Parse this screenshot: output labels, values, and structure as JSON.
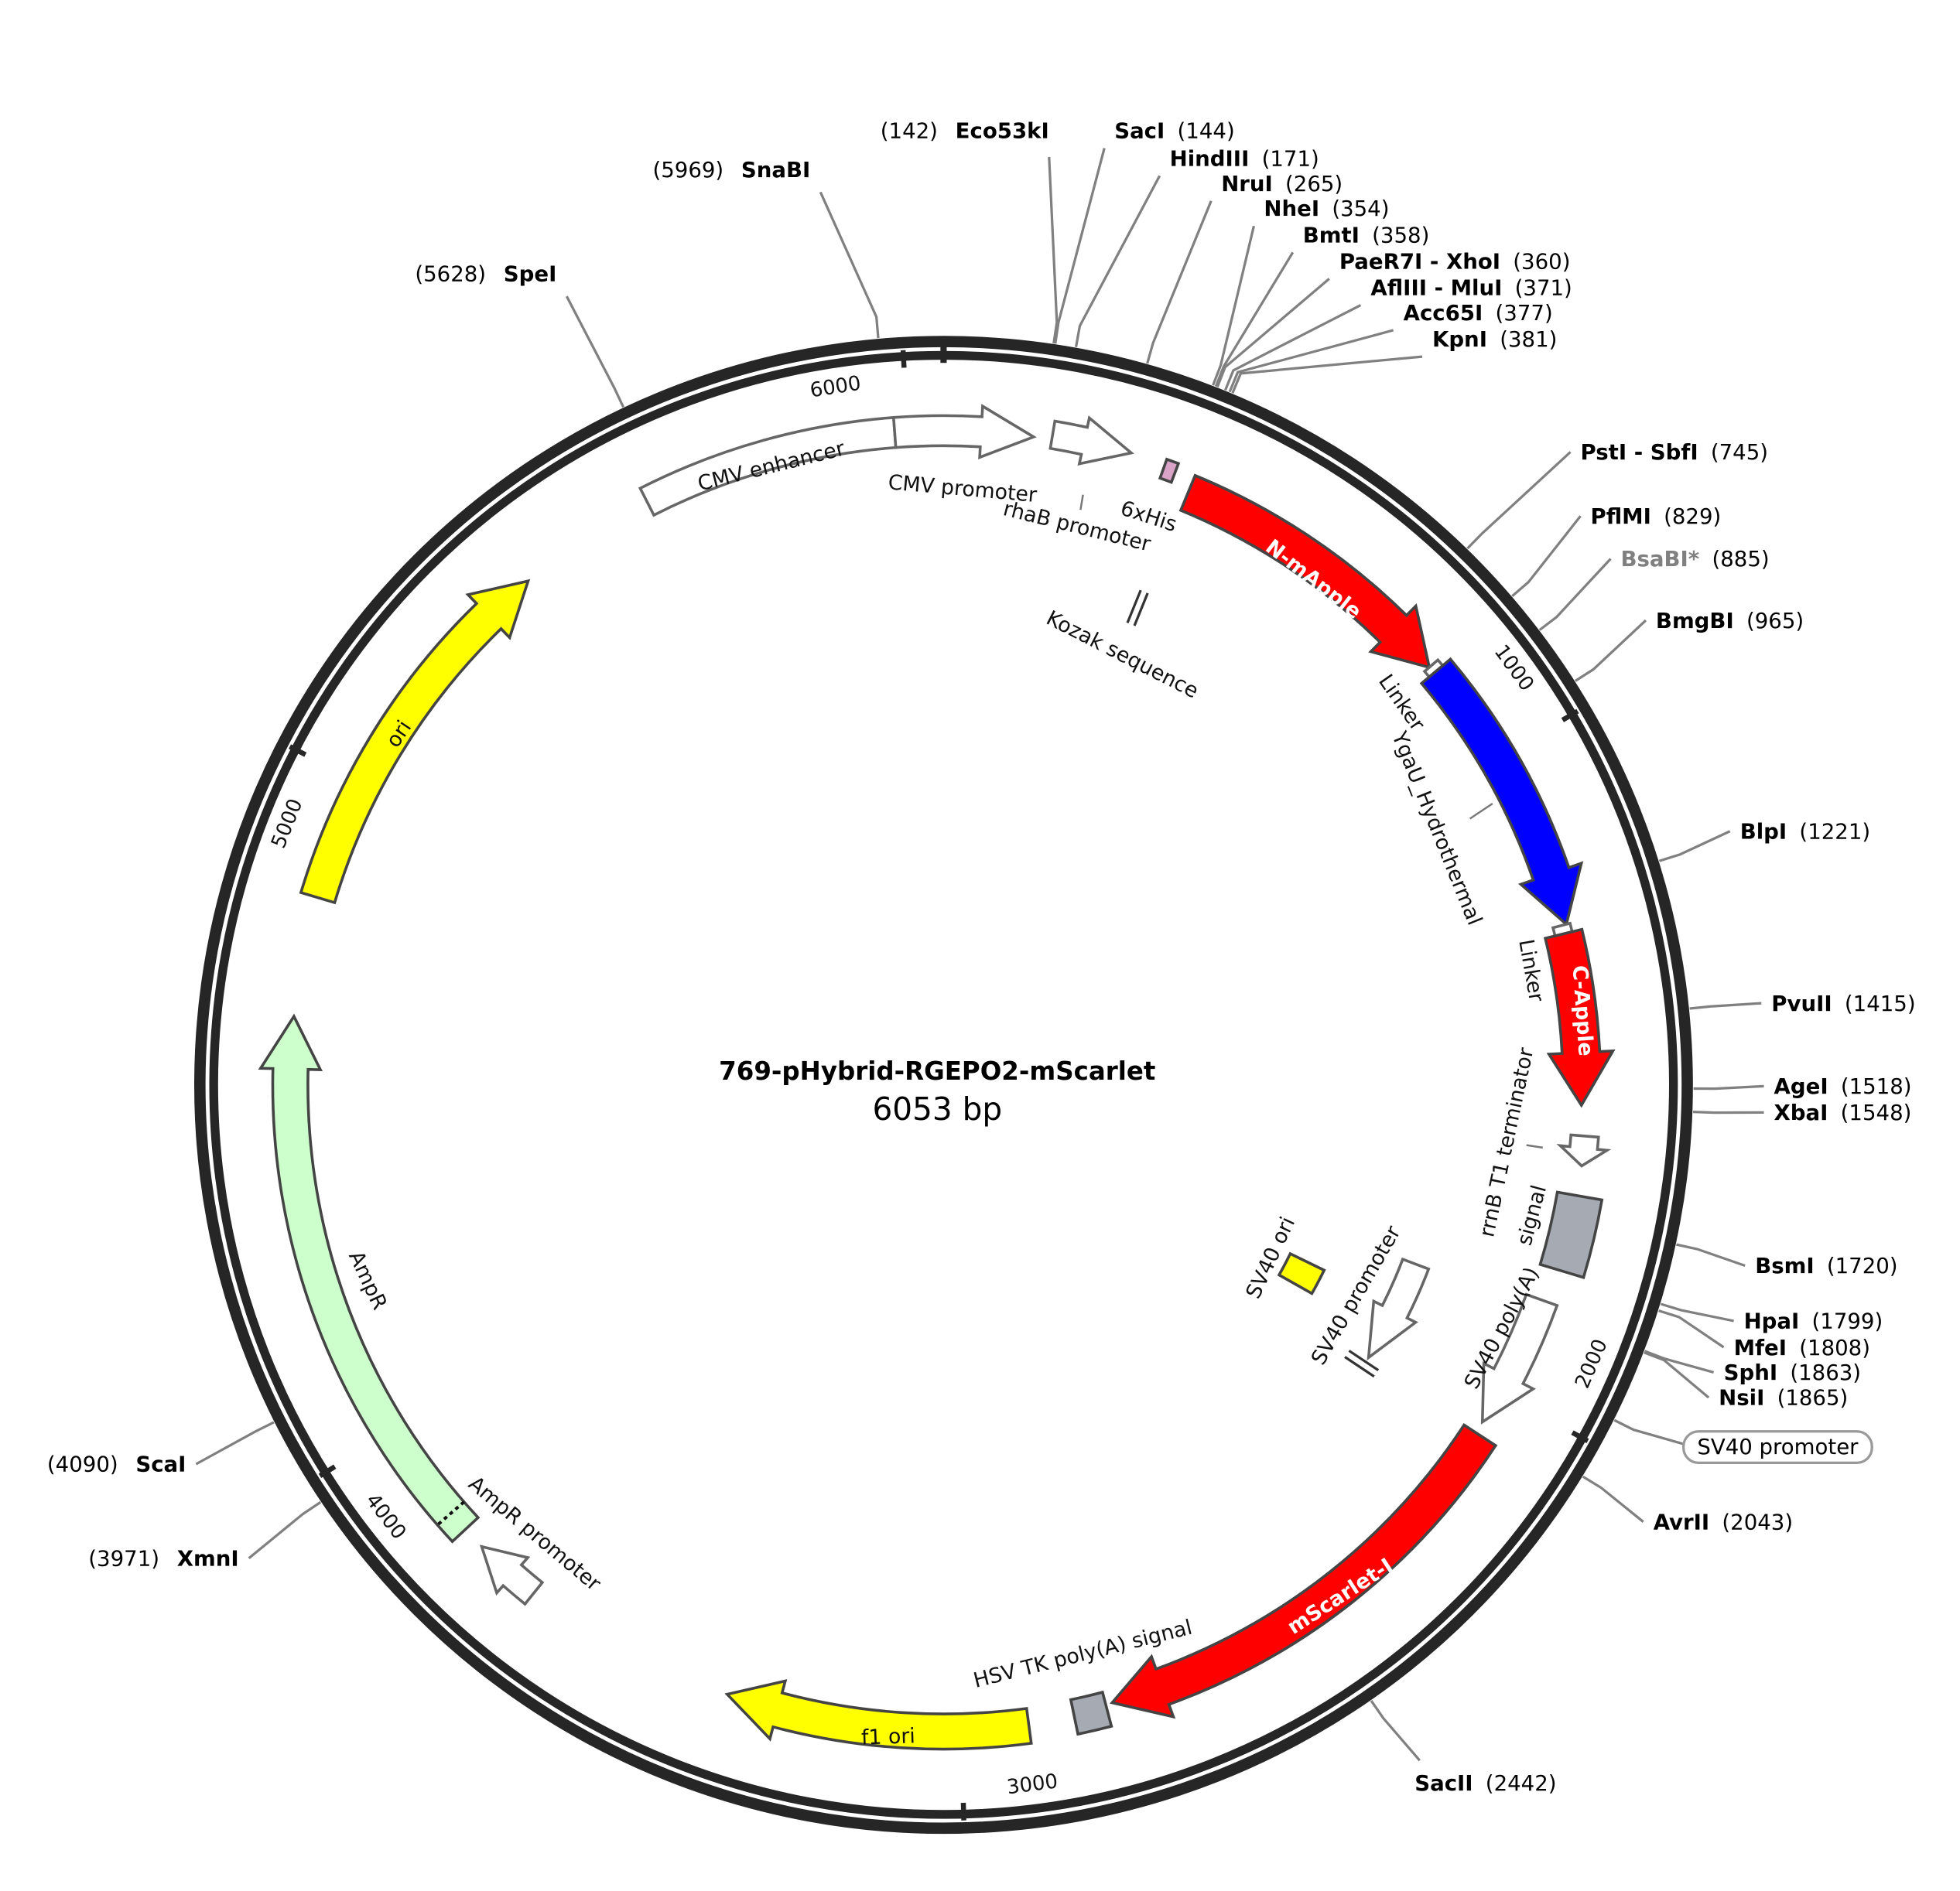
{
  "plasmid": {
    "name": "769-pHybrid-RGEPO2-mScarlet",
    "size_label": "6053 bp",
    "length_bp": 6053
  },
  "ticks": [
    "1000",
    "2000",
    "3000",
    "4000",
    "5000",
    "6000"
  ],
  "colors": {
    "backbone": "#262626",
    "site_line": "#808080",
    "red": "#ff0000",
    "blue": "#0000ff",
    "yellow": "#ffff00",
    "green": "#ccffcc",
    "grey": "#a6abb3",
    "pink": "#d9a3c8"
  },
  "features": [
    {
      "label": "CMV enhancer",
      "start": 5600,
      "end": 5981,
      "color": "#ffffff",
      "shape": "box"
    },
    {
      "label": "CMV promoter",
      "start": 5981,
      "end": 133,
      "color": "#ffffff",
      "shape": "arrow"
    },
    {
      "label": "rhaB promoter",
      "start": 160,
      "end": 278,
      "color": "#ffffff",
      "shape": "arrow"
    },
    {
      "label": "6xHis",
      "start": 330,
      "end": 348,
      "color": "#d9a3c8",
      "shape": "box"
    },
    {
      "label": "Kozak sequence",
      "start": 372,
      "end": 378,
      "color": "#ffffff",
      "shape": "mark"
    },
    {
      "label": "N-mApple",
      "start": 377,
      "end": 829,
      "color": "#ff0000",
      "shape": "arrow"
    },
    {
      "label": "Linker",
      "start": 829,
      "end": 840,
      "color": "#ffffff",
      "shape": "box"
    },
    {
      "label": "YgaU_Hydrothermal",
      "start": 840,
      "end": 1270,
      "color": "#0000ff",
      "shape": "arrow"
    },
    {
      "label": "Linker",
      "start": 1270,
      "end": 1283,
      "color": "#ffffff",
      "shape": "box"
    },
    {
      "label": "C-Apple",
      "start": 1283,
      "end": 1544,
      "color": "#ff0000",
      "shape": "arrow"
    },
    {
      "label": "rrnB T1 terminator",
      "start": 1590,
      "end": 1635,
      "color": "#ffffff",
      "shape": "arrow"
    },
    {
      "label": "SV40 poly(A)",
      "label2": "signal",
      "start": 1680,
      "end": 1795,
      "color": "#a6abb3",
      "shape": "box"
    },
    {
      "label": "",
      "start": 1846,
      "end": 2052,
      "color": "#ffffff",
      "shape": "arrow"
    },
    {
      "label": "SV40 ori",
      "start": 1950,
      "end": 2010,
      "color": "#ffff00",
      "shape": "box"
    },
    {
      "label": "SV40 promoter",
      "start": 1863,
      "end": 2063,
      "color": "#ffffff",
      "shape": "arrow"
    },
    {
      "label": "mScarlet-I",
      "start": 2071,
      "end": 2770,
      "color": "#ff0000",
      "shape": "arrow"
    },
    {
      "label": "HSV TK poly(A) signal",
      "start": 2780,
      "end": 2830,
      "color": "#a6abb3",
      "shape": "box"
    },
    {
      "label": "f1 ori",
      "start": 2899,
      "end": 3355,
      "color": "#ffff00",
      "shape": "arrow"
    },
    {
      "label": "AmpR promoter",
      "start": 3680,
      "end": 3783,
      "color": "#ffffff",
      "shape": "arrow"
    },
    {
      "label": "AmpR",
      "start": 3818,
      "end": 4641,
      "color": "#ccffcc",
      "shape": "arrow"
    },
    {
      "label": "ori",
      "start": 4820,
      "end": 5389,
      "color": "#ffff00",
      "shape": "arrow"
    }
  ],
  "sites": [
    {
      "name": "Eco53kI",
      "pos": "(142)",
      "bp": 142
    },
    {
      "name": "SacI",
      "pos": "(144)",
      "bp": 144
    },
    {
      "name": "HindIII",
      "pos": "(171)",
      "bp": 171
    },
    {
      "name": "NruI",
      "pos": "(265)",
      "bp": 265
    },
    {
      "name": "NheI",
      "pos": "(354)",
      "bp": 354
    },
    {
      "name": "BmtI",
      "pos": "(358)",
      "bp": 358
    },
    {
      "name": "PaeR7I - XhoI",
      "pos": "(360)",
      "bp": 360
    },
    {
      "name": "AflIII - MluI",
      "pos": "(371)",
      "bp": 371
    },
    {
      "name": "Acc65I",
      "pos": "(377)",
      "bp": 377
    },
    {
      "name": "KpnI",
      "pos": "(381)",
      "bp": 381
    },
    {
      "name": "PstI - SbfI",
      "pos": "(745)",
      "bp": 745
    },
    {
      "name": "PflMI",
      "pos": "(829)",
      "bp": 829
    },
    {
      "name": "BsaBI*",
      "pos": "(885)",
      "bp": 885,
      "muted": true
    },
    {
      "name": "BmgBI",
      "pos": "(965)",
      "bp": 965
    },
    {
      "name": "BlpI",
      "pos": "(1221)",
      "bp": 1221
    },
    {
      "name": "PvuII",
      "pos": "(1415)",
      "bp": 1415
    },
    {
      "name": "AgeI",
      "pos": "(1518)",
      "bp": 1518
    },
    {
      "name": "XbaI",
      "pos": "(1548)",
      "bp": 1548
    },
    {
      "name": "BsmI",
      "pos": "(1720)",
      "bp": 1720
    },
    {
      "name": "HpaI",
      "pos": "(1799)",
      "bp": 1799
    },
    {
      "name": "MfeI",
      "pos": "(1808)",
      "bp": 1808
    },
    {
      "name": "SphI",
      "pos": "(1863)",
      "bp": 1863
    },
    {
      "name": "NsiI",
      "pos": "(1865)",
      "bp": 1865
    },
    {
      "name": "AvrII",
      "pos": "(2043)",
      "bp": 2043
    },
    {
      "name": "SacII",
      "pos": "(2442)",
      "bp": 2442
    },
    {
      "name": "XmnI",
      "pos": "(3971)",
      "bp": 3971
    },
    {
      "name": "ScaI",
      "pos": "(4090)",
      "bp": 4090
    },
    {
      "name": "SpeI",
      "pos": "(5628)",
      "bp": 5628
    },
    {
      "name": "SnaBI",
      "pos": "(5969)",
      "bp": 5969
    }
  ],
  "outer_feature_callout": {
    "label": "SV40 promoter",
    "bp": 1960
  }
}
